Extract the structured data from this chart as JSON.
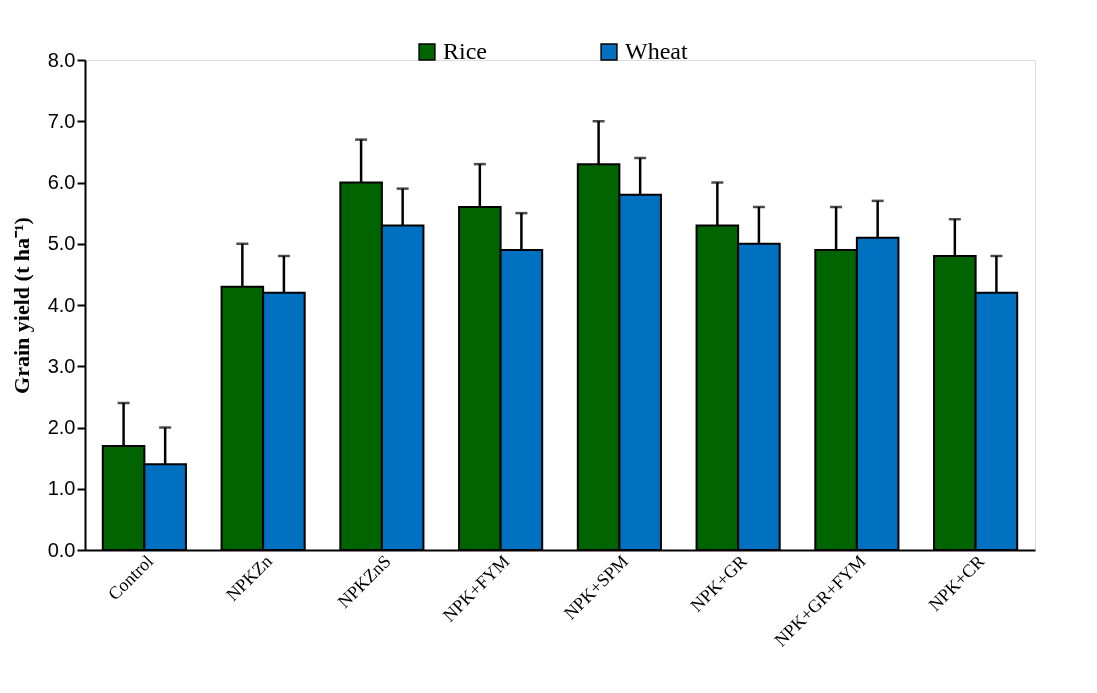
{
  "chart_data": {
    "type": "bar",
    "ylabel": "Grain yield (t ha⁻¹)",
    "categories": [
      "Control",
      "NPKZn",
      "NPKZnS",
      "NPK+FYM",
      "NPK+SPM",
      "NPK+GR",
      "NPK+GR+FYM",
      "NPK+CR"
    ],
    "series": [
      {
        "name": "Rice",
        "color": "#006400",
        "values": [
          1.7,
          4.3,
          6.0,
          5.6,
          6.3,
          5.3,
          4.9,
          4.8
        ],
        "errors": [
          [
            1.7,
            2.4
          ],
          [
            4.3,
            5.0
          ],
          [
            6.0,
            6.7
          ],
          [
            5.6,
            6.3
          ],
          [
            6.3,
            7.0
          ],
          [
            5.3,
            6.0
          ],
          [
            4.9,
            5.6
          ],
          [
            4.8,
            5.4
          ]
        ]
      },
      {
        "name": "Wheat",
        "color": "#0070c0",
        "values": [
          1.4,
          4.2,
          5.3,
          4.9,
          5.8,
          5.0,
          5.1,
          4.2
        ],
        "errors": [
          [
            1.4,
            2.0
          ],
          [
            4.2,
            4.8
          ],
          [
            5.3,
            5.9
          ],
          [
            4.9,
            5.5
          ],
          [
            5.8,
            6.4
          ],
          [
            5.0,
            5.6
          ],
          [
            5.1,
            5.7
          ],
          [
            4.2,
            4.8
          ]
        ]
      }
    ],
    "ylim": [
      0,
      8
    ],
    "yticks": [
      {
        "value": 0,
        "label": "0.0"
      },
      {
        "value": 1,
        "label": "1.0"
      },
      {
        "value": 2,
        "label": "2.0"
      },
      {
        "value": 3,
        "label": "3.0"
      },
      {
        "value": 4,
        "label": "4.0"
      },
      {
        "value": 5,
        "label": "5.0"
      },
      {
        "value": 6,
        "label": "6.0"
      },
      {
        "value": 7,
        "label": "7.0"
      },
      {
        "value": 8,
        "label": "8.0"
      }
    ],
    "grid": false,
    "legend": "top"
  }
}
